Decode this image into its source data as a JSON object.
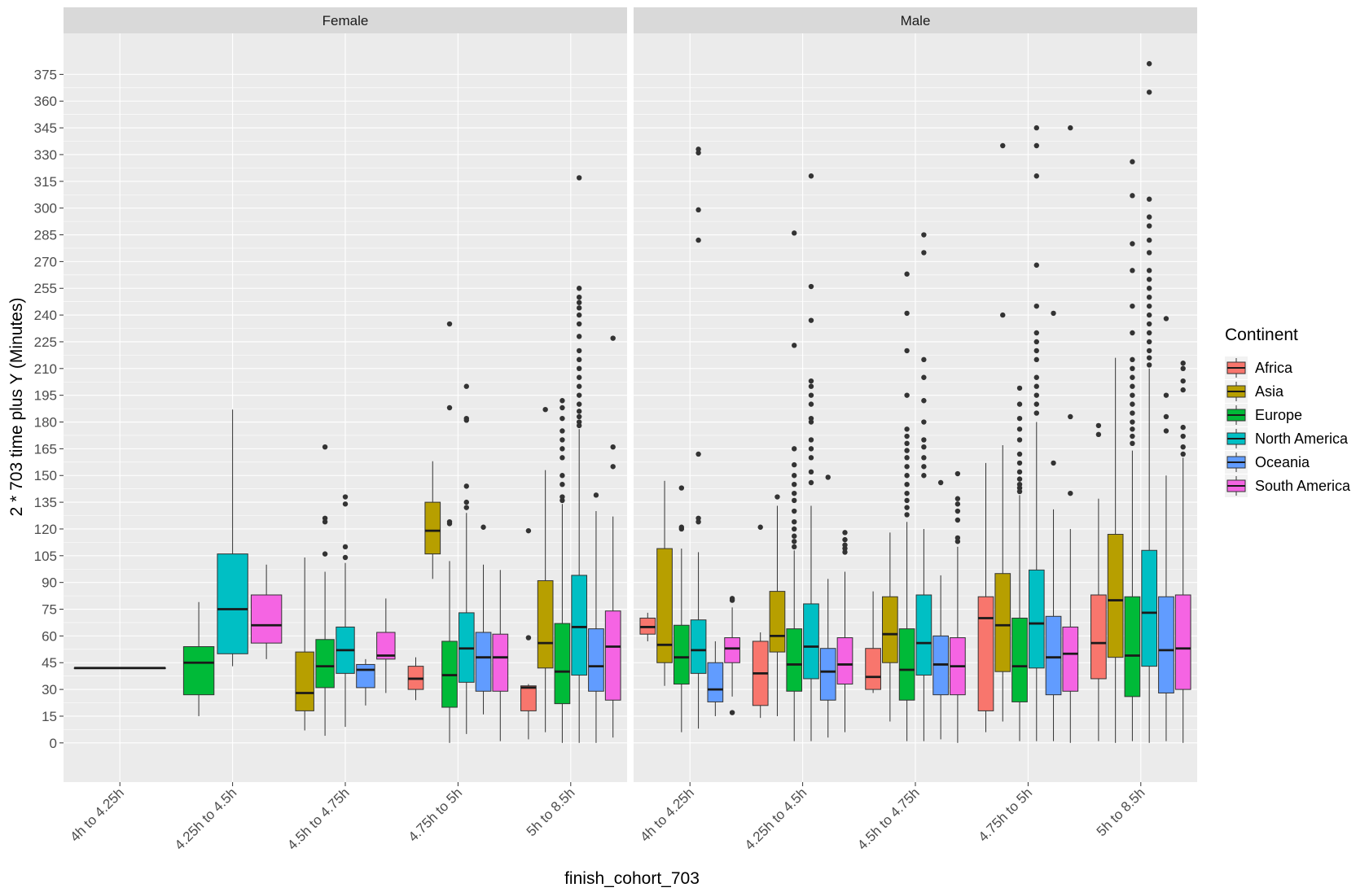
{
  "chart_data": {
    "type": "boxplot",
    "xlabel": "finish_cohort_703",
    "ylabel": "2 * 703 time plus Y (Minutes)",
    "ylim": [
      -22,
      398
    ],
    "yticks": [
      0,
      15,
      30,
      45,
      60,
      75,
      90,
      105,
      120,
      135,
      150,
      165,
      180,
      195,
      210,
      225,
      240,
      255,
      270,
      285,
      300,
      315,
      330,
      345,
      360,
      375
    ],
    "categories": [
      "4h to 4.25h",
      "4.25h to 4.5h",
      "4.5h to 4.75h",
      "4.75h to 5h",
      "5h to 8.5h"
    ],
    "legend": {
      "title": "Continent",
      "position": "right",
      "entries": [
        {
          "name": "Africa",
          "color": "#F8766D"
        },
        {
          "name": "Asia",
          "color": "#B79F00"
        },
        {
          "name": "Europe",
          "color": "#00BA38"
        },
        {
          "name": "North America",
          "color": "#00BFC4"
        },
        {
          "name": "Oceania",
          "color": "#619CFF"
        },
        {
          "name": "South America",
          "color": "#F564E3"
        }
      ]
    },
    "panels": [
      {
        "strip": "Female",
        "groups": [
          {
            "category": 0,
            "slot": 0,
            "total": 1,
            "continent": 2,
            "q1": 42,
            "median": 42,
            "q3": 42,
            "min": 42,
            "max": 42,
            "outliers": []
          },
          {
            "category": 1,
            "slot": 0,
            "total": 3,
            "continent": 2,
            "q1": 27,
            "median": 45,
            "q3": 54,
            "min": 15,
            "max": 79,
            "outliers": []
          },
          {
            "category": 1,
            "slot": 1,
            "total": 3,
            "continent": 3,
            "q1": 50,
            "median": 75,
            "q3": 106,
            "min": 43,
            "max": 187,
            "outliers": []
          },
          {
            "category": 1,
            "slot": 2,
            "total": 3,
            "continent": 5,
            "q1": 56,
            "median": 66,
            "q3": 83,
            "min": 47,
            "max": 100,
            "outliers": []
          },
          {
            "category": 2,
            "slot": 0,
            "total": 5,
            "continent": 1,
            "q1": 18,
            "median": 28,
            "q3": 51,
            "min": 7,
            "max": 104,
            "outliers": []
          },
          {
            "category": 2,
            "slot": 1,
            "total": 5,
            "continent": 2,
            "q1": 31,
            "median": 43,
            "q3": 58,
            "min": 4,
            "max": 96,
            "outliers": [
              106,
              124,
              126,
              166
            ]
          },
          {
            "category": 2,
            "slot": 2,
            "total": 5,
            "continent": 3,
            "q1": 39,
            "median": 52,
            "q3": 65,
            "min": 9,
            "max": 101,
            "outliers": [
              104,
              110,
              134,
              138
            ]
          },
          {
            "category": 2,
            "slot": 3,
            "total": 5,
            "continent": 4,
            "q1": 31,
            "median": 41,
            "q3": 44,
            "min": 21,
            "max": 47,
            "outliers": []
          },
          {
            "category": 2,
            "slot": 4,
            "total": 5,
            "continent": 5,
            "q1": 47,
            "median": 49,
            "q3": 62,
            "min": 28,
            "max": 81,
            "outliers": []
          },
          {
            "category": 3,
            "slot": 0,
            "total": 6,
            "continent": 0,
            "q1": 30,
            "median": 36,
            "q3": 43,
            "min": 24,
            "max": 48,
            "outliers": []
          },
          {
            "category": 3,
            "slot": 1,
            "total": 6,
            "continent": 1,
            "q1": 106,
            "median": 119,
            "q3": 135,
            "min": 92,
            "max": 158,
            "outliers": []
          },
          {
            "category": 3,
            "slot": 2,
            "total": 6,
            "continent": 2,
            "q1": 20,
            "median": 38,
            "q3": 57,
            "min": 0,
            "max": 102,
            "outliers": [
              123,
              124,
              188,
              235
            ]
          },
          {
            "category": 3,
            "slot": 3,
            "total": 6,
            "continent": 3,
            "q1": 34,
            "median": 53,
            "q3": 73,
            "min": 5,
            "max": 129,
            "outliers": [
              132,
              135,
              144,
              181,
              182,
              200
            ]
          },
          {
            "category": 3,
            "slot": 4,
            "total": 6,
            "continent": 4,
            "q1": 29,
            "median": 48,
            "q3": 62,
            "min": 16,
            "max": 100,
            "outliers": [
              121
            ]
          },
          {
            "category": 3,
            "slot": 5,
            "total": 6,
            "continent": 5,
            "q1": 29,
            "median": 48,
            "q3": 61,
            "min": 1,
            "max": 97,
            "outliers": []
          },
          {
            "category": 4,
            "slot": 0,
            "total": 6,
            "continent": 0,
            "q1": 18,
            "median": 31,
            "q3": 32,
            "min": 2,
            "max": 33,
            "outliers": [
              59,
              119
            ]
          },
          {
            "category": 4,
            "slot": 1,
            "total": 6,
            "continent": 1,
            "q1": 42,
            "median": 56,
            "q3": 91,
            "min": 6,
            "max": 153,
            "outliers": [
              187
            ]
          },
          {
            "category": 4,
            "slot": 2,
            "total": 6,
            "continent": 2,
            "q1": 22,
            "median": 40,
            "q3": 67,
            "min": 0,
            "max": 134,
            "outliers": [
              136,
              138,
              145,
              150,
              160,
              165,
              170,
              175,
              182,
              188,
              192
            ]
          },
          {
            "category": 4,
            "slot": 3,
            "total": 6,
            "continent": 3,
            "q1": 38,
            "median": 65,
            "q3": 94,
            "min": 0,
            "max": 176,
            "outliers": [
              178,
              180,
              183,
              186,
              190,
              195,
              200,
              205,
              210,
              215,
              220,
              228,
              235,
              240,
              244,
              247,
              250,
              255,
              317
            ]
          },
          {
            "category": 4,
            "slot": 4,
            "total": 6,
            "continent": 4,
            "q1": 29,
            "median": 43,
            "q3": 64,
            "min": 0,
            "max": 130,
            "outliers": [
              139
            ]
          },
          {
            "category": 4,
            "slot": 5,
            "total": 6,
            "continent": 5,
            "q1": 24,
            "median": 54,
            "q3": 74,
            "min": 3,
            "max": 127,
            "outliers": [
              155,
              166,
              227
            ]
          }
        ]
      },
      {
        "strip": "Male",
        "groups": [
          {
            "category": 0,
            "slot": 0,
            "total": 6,
            "continent": 0,
            "q1": 61,
            "median": 65,
            "q3": 70,
            "min": 57,
            "max": 73,
            "outliers": []
          },
          {
            "category": 0,
            "slot": 1,
            "total": 6,
            "continent": 1,
            "q1": 45,
            "median": 55,
            "q3": 109,
            "min": 32,
            "max": 147,
            "outliers": []
          },
          {
            "category": 0,
            "slot": 2,
            "total": 6,
            "continent": 2,
            "q1": 33,
            "median": 48,
            "q3": 66,
            "min": 6,
            "max": 109,
            "outliers": [
              120,
              121,
              143
            ]
          },
          {
            "category": 0,
            "slot": 3,
            "total": 6,
            "continent": 3,
            "q1": 39,
            "median": 52,
            "q3": 69,
            "min": 8,
            "max": 107,
            "outliers": [
              124,
              126,
              162,
              282,
              299,
              331,
              333
            ]
          },
          {
            "category": 0,
            "slot": 4,
            "total": 6,
            "continent": 4,
            "q1": 23,
            "median": 30,
            "q3": 45,
            "min": 15,
            "max": 57,
            "outliers": []
          },
          {
            "category": 0,
            "slot": 5,
            "total": 6,
            "continent": 5,
            "q1": 45,
            "median": 53,
            "q3": 59,
            "min": 26,
            "max": 76,
            "outliers": [
              17,
              80,
              81
            ]
          },
          {
            "category": 1,
            "slot": 0,
            "total": 6,
            "continent": 0,
            "q1": 21,
            "median": 39,
            "q3": 57,
            "min": 14,
            "max": 62,
            "outliers": [
              121
            ]
          },
          {
            "category": 1,
            "slot": 1,
            "total": 6,
            "continent": 1,
            "q1": 51,
            "median": 60,
            "q3": 85,
            "min": 15,
            "max": 133,
            "outliers": [
              138
            ]
          },
          {
            "category": 1,
            "slot": 2,
            "total": 6,
            "continent": 2,
            "q1": 29,
            "median": 44,
            "q3": 64,
            "min": 1,
            "max": 108,
            "outliers": [
              110,
              113,
              116,
              120,
              124,
              130,
              136,
              140,
              145,
              150,
              156,
              165,
              223,
              286
            ]
          },
          {
            "category": 1,
            "slot": 3,
            "total": 6,
            "continent": 3,
            "q1": 36,
            "median": 54,
            "q3": 78,
            "min": 1,
            "max": 133,
            "outliers": [
              146,
              152,
              160,
              165,
              170,
              180,
              182,
              190,
              195,
              200,
              203,
              237,
              256,
              318
            ]
          },
          {
            "category": 1,
            "slot": 4,
            "total": 6,
            "continent": 4,
            "q1": 24,
            "median": 40,
            "q3": 53,
            "min": 3,
            "max": 92,
            "outliers": [
              149
            ]
          },
          {
            "category": 1,
            "slot": 5,
            "total": 6,
            "continent": 5,
            "q1": 33,
            "median": 44,
            "q3": 59,
            "min": 6,
            "max": 96,
            "outliers": [
              107,
              109,
              111,
              114,
              118
            ]
          },
          {
            "category": 2,
            "slot": 0,
            "total": 6,
            "continent": 0,
            "q1": 30,
            "median": 37,
            "q3": 53,
            "min": 28,
            "max": 85,
            "outliers": []
          },
          {
            "category": 2,
            "slot": 1,
            "total": 6,
            "continent": 1,
            "q1": 45,
            "median": 61,
            "q3": 82,
            "min": 12,
            "max": 118,
            "outliers": []
          },
          {
            "category": 2,
            "slot": 2,
            "total": 6,
            "continent": 2,
            "q1": 24,
            "median": 41,
            "q3": 64,
            "min": 1,
            "max": 124,
            "outliers": [
              128,
              132,
              136,
              140,
              145,
              150,
              155,
              160,
              164,
              168,
              172,
              176,
              195,
              220,
              241,
              263
            ]
          },
          {
            "category": 2,
            "slot": 3,
            "total": 6,
            "continent": 3,
            "q1": 38,
            "median": 56,
            "q3": 83,
            "min": 1,
            "max": 120,
            "outliers": [
              150,
              155,
              160,
              166,
              170,
              180,
              192,
              205,
              215,
              275,
              285
            ]
          },
          {
            "category": 2,
            "slot": 4,
            "total": 6,
            "continent": 4,
            "q1": 27,
            "median": 44,
            "q3": 60,
            "min": 2,
            "max": 94,
            "outliers": [
              146
            ]
          },
          {
            "category": 2,
            "slot": 5,
            "total": 6,
            "continent": 5,
            "q1": 27,
            "median": 43,
            "q3": 59,
            "min": 0,
            "max": 110,
            "outliers": [
              113,
              115,
              125,
              130,
              134,
              137,
              151
            ]
          },
          {
            "category": 3,
            "slot": 0,
            "total": 6,
            "continent": 0,
            "q1": 18,
            "median": 70,
            "q3": 82,
            "min": 6,
            "max": 157,
            "outliers": []
          },
          {
            "category": 3,
            "slot": 1,
            "total": 6,
            "continent": 1,
            "q1": 40,
            "median": 66,
            "q3": 95,
            "min": 12,
            "max": 167,
            "outliers": [
              240,
              335
            ]
          },
          {
            "category": 3,
            "slot": 2,
            "total": 6,
            "continent": 2,
            "q1": 23,
            "median": 43,
            "q3": 70,
            "min": 1,
            "max": 139,
            "outliers": [
              141,
              143,
              145,
              148,
              152,
              157,
              162,
              170,
              176,
              182,
              190,
              199
            ]
          },
          {
            "category": 3,
            "slot": 3,
            "total": 6,
            "continent": 3,
            "q1": 42,
            "median": 67,
            "q3": 97,
            "min": 1,
            "max": 180,
            "outliers": [
              185,
              190,
              195,
              200,
              205,
              215,
              220,
              225,
              230,
              245,
              268,
              318,
              335,
              345
            ]
          },
          {
            "category": 3,
            "slot": 4,
            "total": 6,
            "continent": 4,
            "q1": 27,
            "median": 48,
            "q3": 71,
            "min": 1,
            "max": 131,
            "outliers": [
              157,
              241
            ]
          },
          {
            "category": 3,
            "slot": 5,
            "total": 6,
            "continent": 5,
            "q1": 29,
            "median": 50,
            "q3": 65,
            "min": 0,
            "max": 120,
            "outliers": [
              140,
              183,
              345
            ]
          },
          {
            "category": 4,
            "slot": 0,
            "total": 6,
            "continent": 0,
            "q1": 36,
            "median": 56,
            "q3": 83,
            "min": 1,
            "max": 137,
            "outliers": [
              173,
              178
            ]
          },
          {
            "category": 4,
            "slot": 1,
            "total": 6,
            "continent": 1,
            "q1": 48,
            "median": 80,
            "q3": 117,
            "min": 0,
            "max": 216,
            "outliers": []
          },
          {
            "category": 4,
            "slot": 2,
            "total": 6,
            "continent": 2,
            "q1": 26,
            "median": 49,
            "q3": 82,
            "min": 1,
            "max": 164,
            "outliers": [
              168,
              172,
              176,
              180,
              185,
              190,
              195,
              200,
              205,
              210,
              215,
              230,
              245,
              265,
              280,
              307,
              326
            ]
          },
          {
            "category": 4,
            "slot": 3,
            "total": 6,
            "continent": 3,
            "q1": 43,
            "median": 73,
            "q3": 108,
            "min": 0,
            "max": 210,
            "outliers": [
              212,
              216,
              220,
              225,
              230,
              235,
              240,
              245,
              250,
              255,
              260,
              265,
              275,
              282,
              290,
              295,
              305,
              365,
              381
            ]
          },
          {
            "category": 4,
            "slot": 4,
            "total": 6,
            "continent": 4,
            "q1": 28,
            "median": 52,
            "q3": 82,
            "min": 1,
            "max": 150,
            "outliers": [
              175,
              183,
              195,
              238
            ]
          },
          {
            "category": 4,
            "slot": 5,
            "total": 6,
            "continent": 5,
            "q1": 30,
            "median": 53,
            "q3": 83,
            "min": 0,
            "max": 160,
            "outliers": [
              162,
              166,
              172,
              177,
              198,
              203,
              210,
              213
            ]
          }
        ]
      }
    ]
  }
}
